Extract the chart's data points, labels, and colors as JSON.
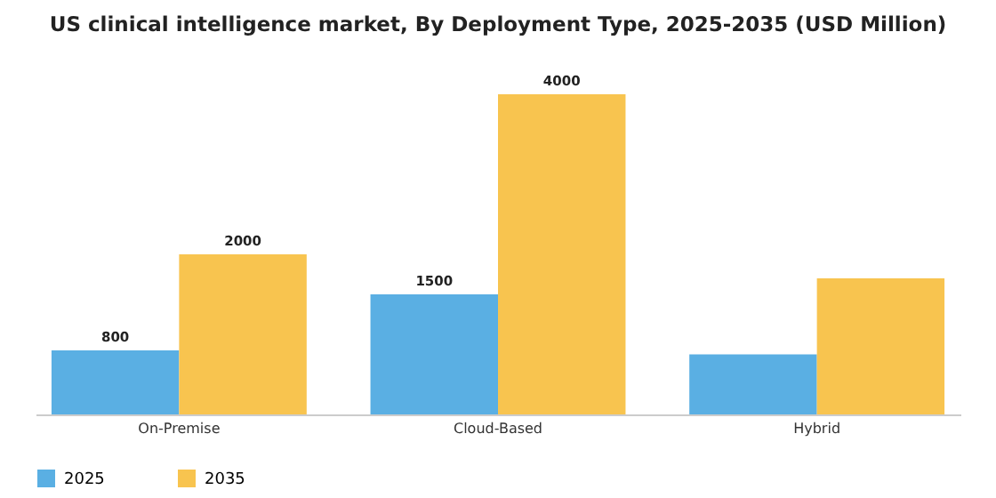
{
  "chart_data": {
    "type": "bar",
    "title": "US clinical intelligence market, By Deployment Type, 2025-2035 (USD Million)",
    "categories": [
      "On-Premise",
      "Cloud-Based",
      "Hybrid"
    ],
    "series": [
      {
        "name": "2025",
        "color": "#5aafe3",
        "values": [
          800,
          1500,
          750
        ],
        "value_labels": [
          "800",
          "1500",
          null
        ]
      },
      {
        "name": "2035",
        "color": "#f8c44f",
        "values": [
          2000,
          4000,
          1700
        ],
        "value_labels": [
          "2000",
          "4000",
          null
        ]
      }
    ],
    "legend": "bottom",
    "grid": false
  }
}
